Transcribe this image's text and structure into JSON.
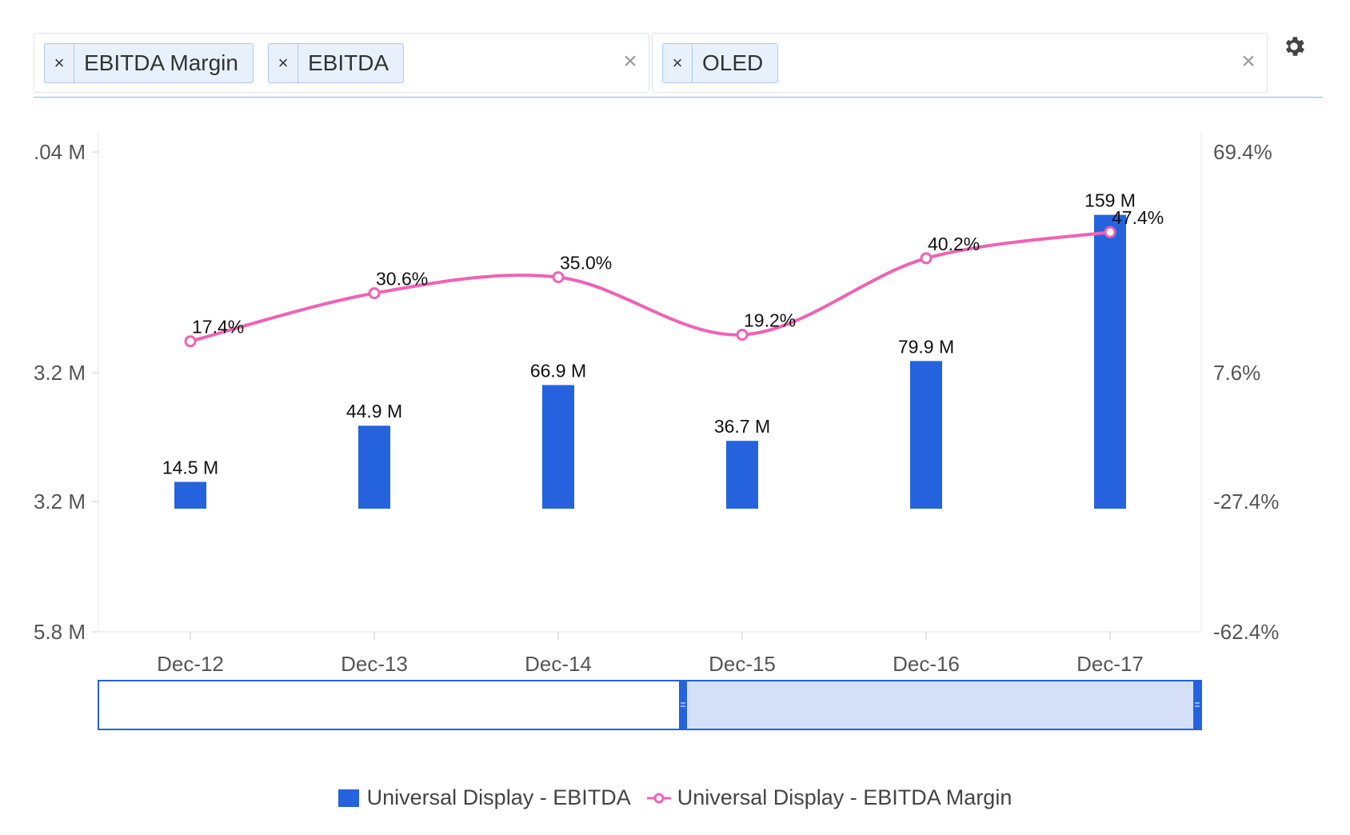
{
  "filters": {
    "metrics": [
      "EBITDA Margin",
      "EBITDA"
    ],
    "company": [
      "OLED"
    ],
    "remove_symbol": "×",
    "clear_symbol": "×"
  },
  "icons": {
    "settings": "gear-icon"
  },
  "colors": {
    "bar": "#2563de",
    "line": "#f062b4",
    "accent": "#2563de"
  },
  "chart_data": {
    "type": "bar+line",
    "categories": [
      "Dec-12",
      "Dec-13",
      "Dec-14",
      "Dec-15",
      "Dec-16",
      "Dec-17"
    ],
    "series": [
      {
        "name": "Universal Display - EBITDA",
        "type": "bar",
        "axis": "left",
        "values": [
          14.5,
          44.9,
          66.9,
          36.7,
          79.9,
          159
        ],
        "labels": [
          "14.5 M",
          "44.9 M",
          "66.9 M",
          "36.7 M",
          "79.9 M",
          "159 M"
        ]
      },
      {
        "name": "Universal Display - EBITDA Margin",
        "type": "line",
        "axis": "right",
        "values": [
          17.4,
          30.6,
          35.0,
          19.2,
          40.2,
          47.4
        ],
        "labels": [
          "17.4%",
          "30.6%",
          "35.0%",
          "19.2%",
          "40.2%",
          "47.4%"
        ]
      }
    ],
    "left_axis": {
      "ticks": [
        ".04 M",
        "3.2 M",
        "3.2 M",
        "5.8 M"
      ]
    },
    "right_axis": {
      "ticks": [
        "69.4%",
        "7.6%",
        "-27.4%",
        "-62.4%"
      ],
      "range": [
        -62.4,
        69.4
      ]
    },
    "legend_position": "bottom",
    "navigator": {
      "selected_range": [
        "Dec-15",
        "Dec-17"
      ]
    }
  }
}
